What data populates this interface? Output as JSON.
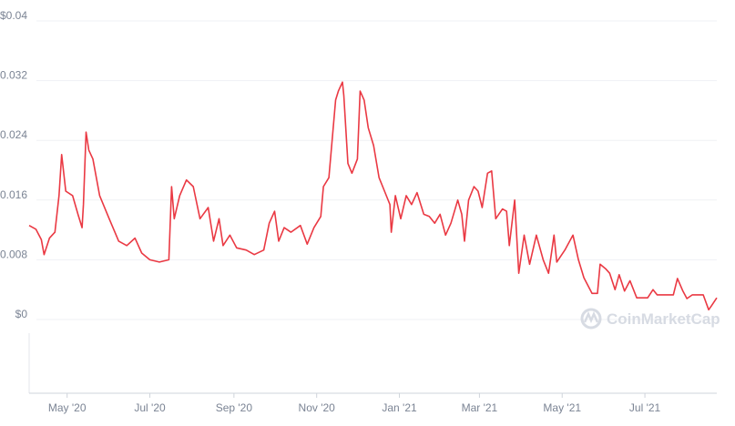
{
  "chart_data": {
    "type": "line",
    "title": "",
    "xlabel": "",
    "ylabel": "",
    "ylim": [
      0,
      0.04
    ],
    "xlim": [
      "2020-04-03",
      "2021-08-23"
    ],
    "grid": true,
    "y_ticks": [
      {
        "value": 0,
        "label": "$0"
      },
      {
        "value": 0.008,
        "label": "$0.008"
      },
      {
        "value": 0.016,
        "label": "$0.016"
      },
      {
        "value": 0.024,
        "label": "$0.024"
      },
      {
        "value": 0.032,
        "label": "$0.032"
      },
      {
        "value": 0.04,
        "label": "$0.04"
      }
    ],
    "x_ticks": [
      {
        "date": "2020-05-01",
        "label": "May '20"
      },
      {
        "date": "2020-07-01",
        "label": "Jul '20"
      },
      {
        "date": "2020-09-01",
        "label": "Sep '20"
      },
      {
        "date": "2020-11-01",
        "label": "Nov '20"
      },
      {
        "date": "2021-01-01",
        "label": "Jan '21"
      },
      {
        "date": "2021-03-01",
        "label": "Mar '21"
      },
      {
        "date": "2021-05-01",
        "label": "May '21"
      },
      {
        "date": "2021-07-01",
        "label": "Jul '21"
      }
    ],
    "line_color": "#ea3943",
    "series": [
      {
        "x": [
          "2020-04-03",
          "2020-04-08",
          "2020-04-12",
          "2020-04-14",
          "2020-04-18",
          "2020-04-22",
          "2020-04-25",
          "2020-04-27",
          "2020-04-30",
          "2020-05-05",
          "2020-05-09",
          "2020-05-12",
          "2020-05-13",
          "2020-05-15",
          "2020-05-17",
          "2020-05-20",
          "2020-05-25",
          "2020-06-01",
          "2020-06-08",
          "2020-06-14",
          "2020-06-20",
          "2020-06-25",
          "2020-07-01",
          "2020-07-08",
          "2020-07-15",
          "2020-07-17",
          "2020-07-19",
          "2020-07-23",
          "2020-07-28",
          "2020-08-02",
          "2020-08-07",
          "2020-08-13",
          "2020-08-17",
          "2020-08-21",
          "2020-08-24",
          "2020-08-29",
          "2020-09-03",
          "2020-09-10",
          "2020-09-16",
          "2020-09-23",
          "2020-09-27",
          "2020-10-01",
          "2020-10-04",
          "2020-10-08",
          "2020-10-13",
          "2020-10-20",
          "2020-10-25",
          "2020-10-30",
          "2020-11-04",
          "2020-11-06",
          "2020-11-10",
          "2020-11-15",
          "2020-11-17",
          "2020-11-20",
          "2020-11-21",
          "2020-11-24",
          "2020-11-27",
          "2020-12-01",
          "2020-12-03",
          "2020-12-06",
          "2020-12-09",
          "2020-12-13",
          "2020-12-17",
          "2020-12-21",
          "2020-12-25",
          "2020-12-26",
          "2020-12-29",
          "2021-01-02",
          "2021-01-06",
          "2021-01-10",
          "2021-01-14",
          "2021-01-19",
          "2021-01-23",
          "2021-01-27",
          "2021-01-31",
          "2021-02-04",
          "2021-02-08",
          "2021-02-13",
          "2021-02-16",
          "2021-02-18",
          "2021-02-21",
          "2021-02-25",
          "2021-02-28",
          "2021-03-03",
          "2021-03-07",
          "2021-03-10",
          "2021-03-13",
          "2021-03-18",
          "2021-03-21",
          "2021-03-23",
          "2021-03-27",
          "2021-03-30",
          "2021-04-03",
          "2021-04-07",
          "2021-04-12",
          "2021-04-17",
          "2021-04-21",
          "2021-04-25",
          "2021-04-27",
          "2021-05-03",
          "2021-05-09",
          "2021-05-13",
          "2021-05-17",
          "2021-05-23",
          "2021-05-27",
          "2021-05-29",
          "2021-06-02",
          "2021-06-05",
          "2021-06-09",
          "2021-06-12",
          "2021-06-16",
          "2021-06-20",
          "2021-06-25",
          "2021-07-03",
          "2021-07-07",
          "2021-07-10",
          "2021-07-22",
          "2021-07-25",
          "2021-07-29",
          "2021-08-01",
          "2021-08-05",
          "2021-08-13",
          "2021-08-17",
          "2021-08-19",
          "2021-08-23"
        ],
        "y": [
          0.0126,
          0.0121,
          0.0107,
          0.0087,
          0.0109,
          0.0117,
          0.0166,
          0.0221,
          0.0172,
          0.0166,
          0.0141,
          0.0123,
          0.0154,
          0.0251,
          0.0227,
          0.0215,
          0.0166,
          0.0135,
          0.0105,
          0.0099,
          0.0109,
          0.0089,
          0.008,
          0.0077,
          0.008,
          0.0178,
          0.0135,
          0.0166,
          0.0187,
          0.0178,
          0.0135,
          0.015,
          0.0105,
          0.0135,
          0.0099,
          0.0113,
          0.0096,
          0.0093,
          0.0087,
          0.0093,
          0.0129,
          0.0145,
          0.0105,
          0.0123,
          0.0117,
          0.0126,
          0.0101,
          0.0123,
          0.0138,
          0.0178,
          0.019,
          0.0294,
          0.0306,
          0.0318,
          0.03,
          0.0209,
          0.0196,
          0.0215,
          0.0306,
          0.0294,
          0.0257,
          0.0233,
          0.019,
          0.0172,
          0.0154,
          0.0117,
          0.0166,
          0.0135,
          0.0166,
          0.0154,
          0.017,
          0.0141,
          0.0138,
          0.0129,
          0.0141,
          0.0113,
          0.0129,
          0.016,
          0.0141,
          0.0105,
          0.016,
          0.0178,
          0.0172,
          0.015,
          0.0196,
          0.0199,
          0.0135,
          0.0148,
          0.0145,
          0.0099,
          0.016,
          0.0062,
          0.0113,
          0.0074,
          0.0113,
          0.008,
          0.0062,
          0.0113,
          0.0077,
          0.0093,
          0.0113,
          0.008,
          0.0056,
          0.0035,
          0.0035,
          0.0074,
          0.0068,
          0.0062,
          0.004,
          0.006,
          0.0038,
          0.0052,
          0.0029,
          0.0029,
          0.004,
          0.0033,
          0.0033,
          0.0055,
          0.0038,
          0.0028,
          0.0033,
          0.0033,
          0.0013,
          0.0018,
          0.0029
        ]
      }
    ]
  },
  "watermark": {
    "text": "CoinMarketCap",
    "icon": "coinmarketcap-logo-icon"
  }
}
